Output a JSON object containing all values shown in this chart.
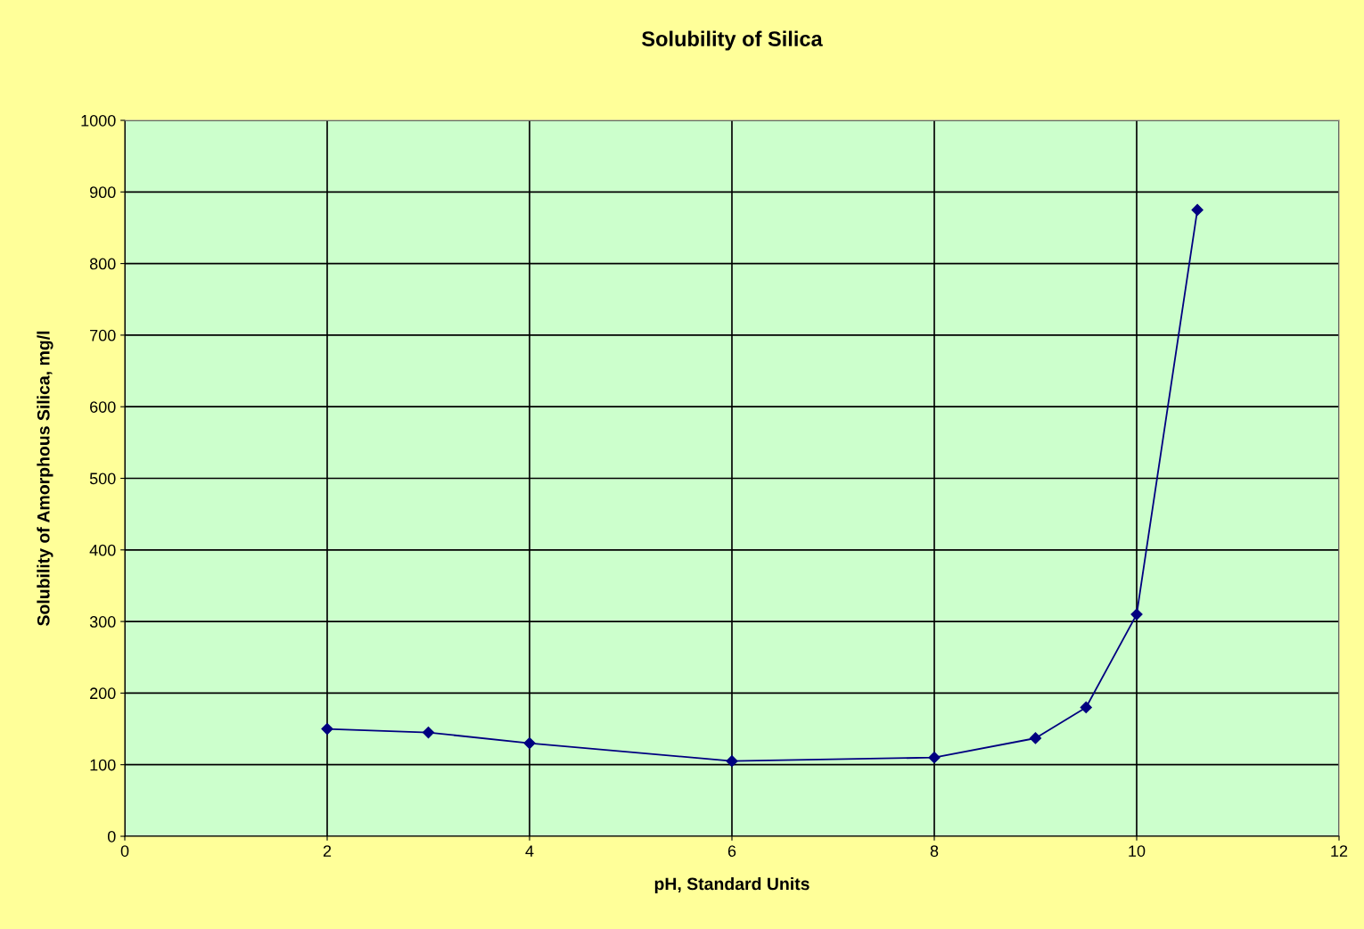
{
  "chart_data": {
    "type": "line",
    "title": "Solubility of Silica",
    "xlabel": "pH, Standard Units",
    "ylabel": "Solubility of Amorphous Silica, mg/l",
    "x": [
      2,
      3,
      4,
      6,
      8,
      9,
      9.5,
      10,
      10.6
    ],
    "series": [
      {
        "color": "#000080",
        "values": [
          150,
          145,
          130,
          105,
          110,
          137,
          180,
          310,
          875
        ]
      }
    ],
    "xlim": [
      0,
      12
    ],
    "xticks": [
      0,
      2,
      4,
      6,
      8,
      10,
      12
    ],
    "ylim": [
      0,
      1000
    ],
    "yticks": [
      0,
      100,
      200,
      300,
      400,
      500,
      600,
      700,
      800,
      900,
      1000
    ],
    "grid": true,
    "marker": "diamond",
    "line_style": "solid",
    "legend": false
  }
}
